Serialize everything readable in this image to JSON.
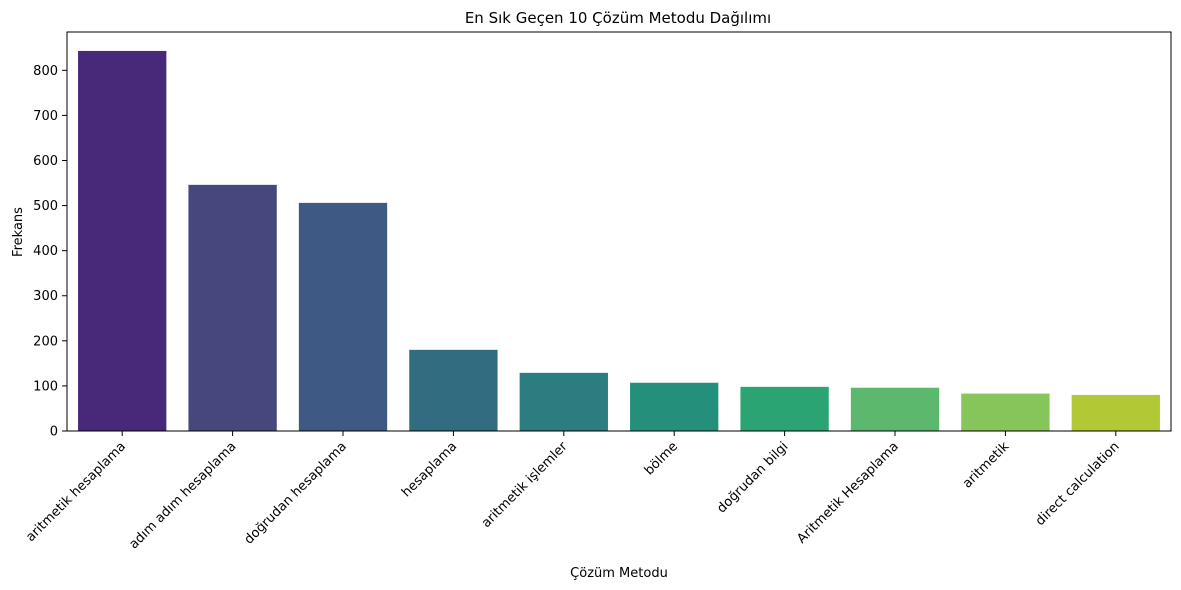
{
  "chart_data": {
    "type": "bar",
    "title": "En Sık Geçen 10 Çözüm Metodu Dağılımı",
    "xlabel": "Çözüm Metodu",
    "ylabel": "Frekans",
    "categories": [
      "aritmetik hesaplama",
      "adım adım hesaplama",
      "doğrudan hesaplama",
      "hesaplama",
      "aritmetik işlemler",
      "bölme",
      "doğrudan bilgi",
      "Aritmetik Hesaplama",
      "aritmetik",
      "direct calculation"
    ],
    "values": [
      843,
      546,
      506,
      180,
      129,
      107,
      98,
      96,
      83,
      80
    ],
    "ylim": [
      0,
      885
    ],
    "yticks": [
      0,
      100,
      200,
      300,
      400,
      500,
      600,
      700,
      800
    ],
    "grid": false,
    "colors": [
      "#482878",
      "#46477d",
      "#3e5a84",
      "#316c81",
      "#2b7d80",
      "#24907c",
      "#2aa472",
      "#5cb86c",
      "#86c55a",
      "#b2c935"
    ]
  }
}
